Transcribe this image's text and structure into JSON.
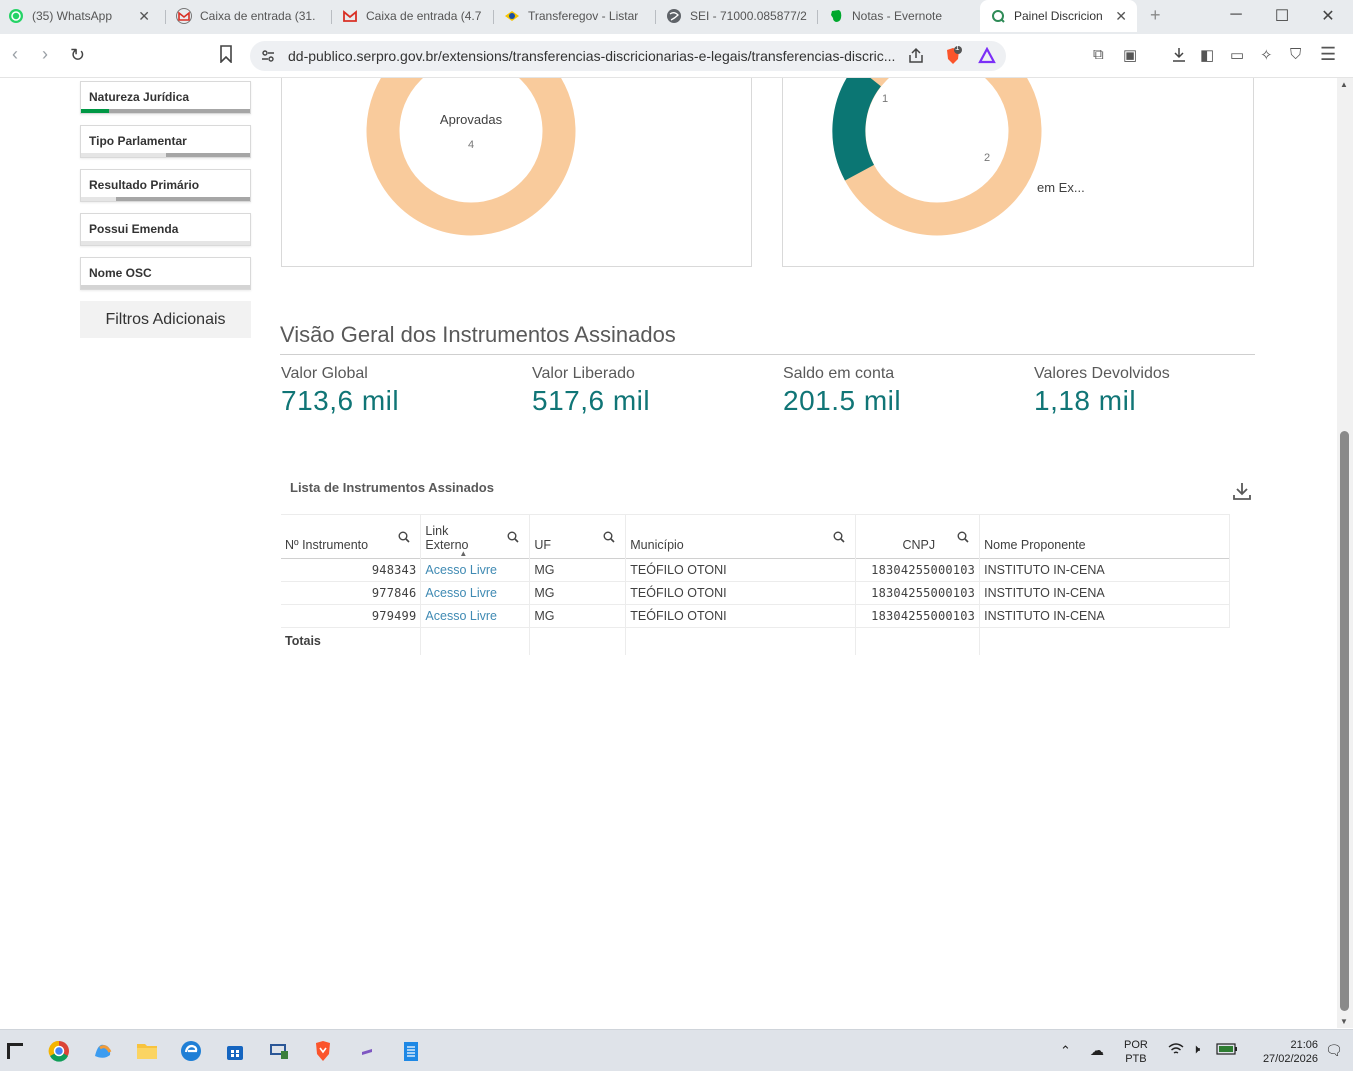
{
  "browser": {
    "tabs": [
      {
        "label": "(35) WhatsApp",
        "icon": "whatsapp-icon"
      },
      {
        "label": "Caixa de entrada (31.",
        "icon": "gmail-icon"
      },
      {
        "label": "Caixa de entrada (4.7",
        "icon": "gmail-icon"
      },
      {
        "label": "Transferegov - Listar",
        "icon": "brazil-flag-icon"
      },
      {
        "label": "SEI - 71000.085877/2",
        "icon": "globe-icon"
      },
      {
        "label": "Notas - Evernote",
        "icon": "evernote-icon"
      },
      {
        "label": "Painel Discricion",
        "icon": "qlik-icon"
      }
    ],
    "url": "dd-publico.serpro.gov.br/extensions/transferencias-discricionarias-e-legais/transferencias-discric...",
    "brave_badge": "1"
  },
  "sidebar": {
    "filters": [
      {
        "label": "Natureza Jurídica"
      },
      {
        "label": "Tipo Parlamentar"
      },
      {
        "label": "Resultado Primário"
      },
      {
        "label": "Possui Emenda"
      },
      {
        "label": "Nome OSC"
      }
    ],
    "additional_filters": "Filtros Adicionais"
  },
  "donut_left": {
    "label": "Aprovadas",
    "value": "4"
  },
  "donut_right": {
    "label_a": "1",
    "label_b": "2",
    "legend": "em Ex..."
  },
  "overview": {
    "title": "Visão Geral dos Instrumentos Assinados",
    "kpis": [
      {
        "label": "Valor Global",
        "value": "713,6 mil"
      },
      {
        "label": "Valor Liberado",
        "value": "517,6 mil"
      },
      {
        "label": "Saldo em conta",
        "value": "201.5 mil"
      },
      {
        "label": "Valores Devolvidos",
        "value": "1,18 mil"
      }
    ]
  },
  "table": {
    "title": "Lista de Instrumentos Assinados",
    "headers": {
      "instrumento": "Nº Instrumento",
      "link_line1": "Link",
      "link_line2": "Externo",
      "uf": "UF",
      "municipio": "Município",
      "cnpj": "CNPJ",
      "proponente": "Nome Proponente"
    },
    "rows": [
      {
        "instrumento": "948343",
        "link": "Acesso Livre",
        "uf": "MG",
        "municipio": "TEÓFILO OTONI",
        "cnpj": "18304255000103",
        "proponente": "INSTITUTO IN-CENA"
      },
      {
        "instrumento": "977846",
        "link": "Acesso Livre",
        "uf": "MG",
        "municipio": "TEÓFILO OTONI",
        "cnpj": "18304255000103",
        "proponente": "INSTITUTO IN-CENA"
      },
      {
        "instrumento": "979499",
        "link": "Acesso Livre",
        "uf": "MG",
        "municipio": "TEÓFILO OTONI",
        "cnpj": "18304255000103",
        "proponente": "INSTITUTO IN-CENA"
      }
    ],
    "totals_label": "Totais"
  },
  "taskbar": {
    "lang_top": "POR",
    "lang_bottom": "PTB",
    "time": "21:06",
    "date": "27/02/2026"
  },
  "colors": {
    "kpi": "#107576",
    "donut_peach": "#f9cb9c",
    "donut_teal": "#0b7673",
    "selected_green": "#009845"
  }
}
